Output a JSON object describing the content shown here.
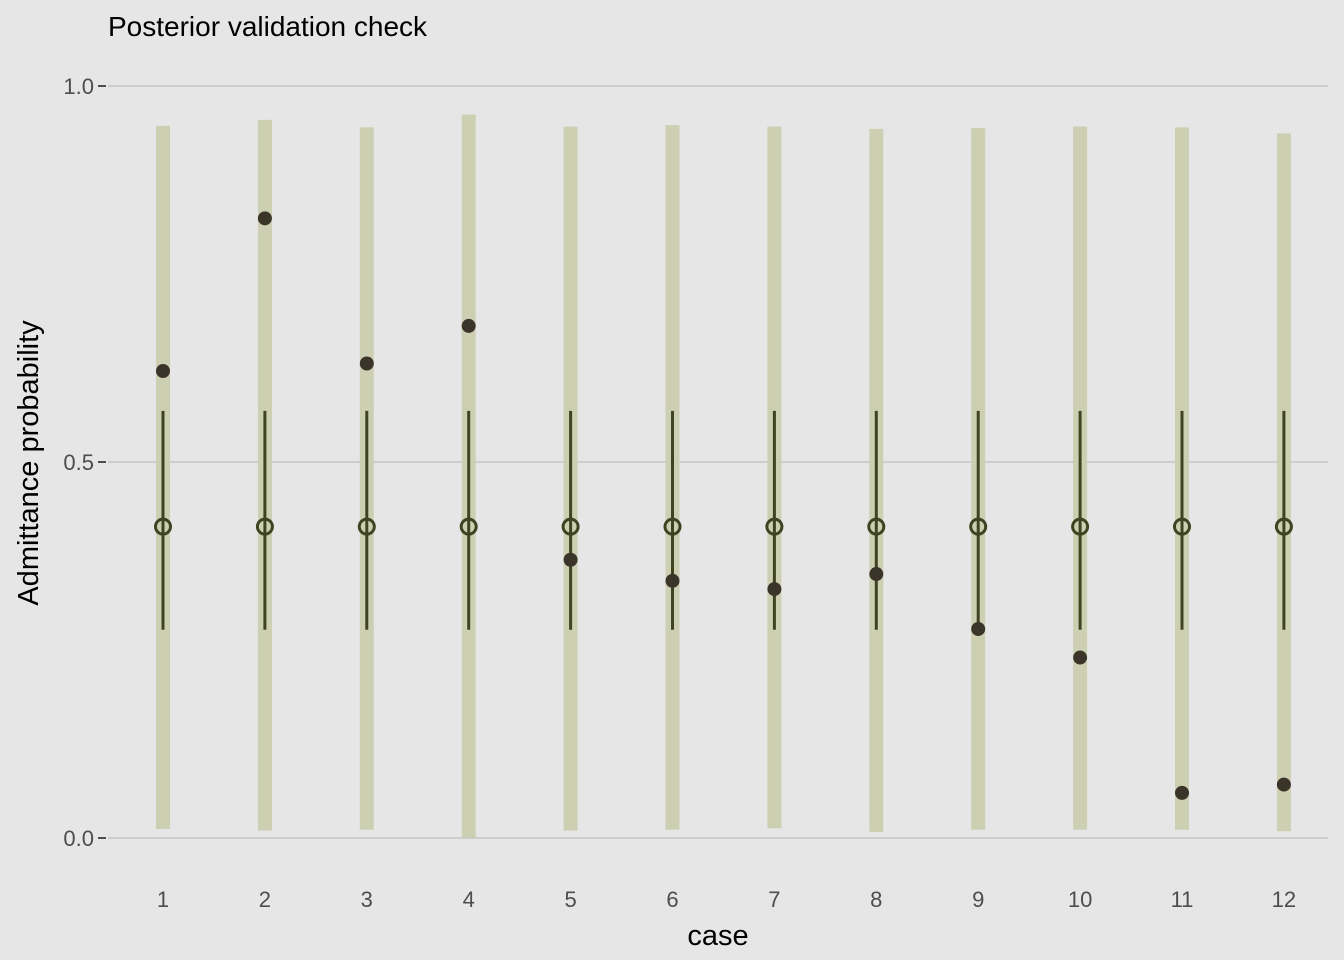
{
  "chart_data": {
    "type": "scatter",
    "title": "Posterior validation check",
    "xlabel": "case",
    "ylabel": "Admittance probability",
    "ylim": [
      0,
      1
    ],
    "yticks": [
      "0.0",
      "0.5",
      "1.0"
    ],
    "categories": [
      "1",
      "2",
      "3",
      "4",
      "5",
      "6",
      "7",
      "8",
      "9",
      "10",
      "11",
      "12"
    ],
    "grid": "horizontal-major",
    "legend": "none",
    "series": [
      {
        "marker": "interval-bar",
        "low": [
          0.012,
          0.01,
          0.011,
          0.0,
          0.01,
          0.011,
          0.013,
          0.008,
          0.011,
          0.011,
          0.011,
          0.009
        ],
        "high": [
          0.947,
          0.955,
          0.945,
          0.962,
          0.946,
          0.948,
          0.946,
          0.943,
          0.944,
          0.946,
          0.945,
          0.937
        ]
      },
      {
        "marker": "interval-line",
        "low": [
          0.277,
          0.277,
          0.277,
          0.277,
          0.277,
          0.277,
          0.277,
          0.277,
          0.277,
          0.277,
          0.277,
          0.277
        ],
        "high": [
          0.568,
          0.568,
          0.568,
          0.568,
          0.568,
          0.568,
          0.568,
          0.568,
          0.568,
          0.568,
          0.568,
          0.568
        ]
      },
      {
        "marker": "open-circle",
        "values": [
          0.414,
          0.414,
          0.414,
          0.414,
          0.414,
          0.414,
          0.414,
          0.414,
          0.414,
          0.414,
          0.414,
          0.414
        ]
      },
      {
        "marker": "filled-circle",
        "values": [
          0.621,
          0.824,
          0.631,
          0.681,
          0.37,
          0.342,
          0.331,
          0.351,
          0.278,
          0.24,
          0.06,
          0.071
        ]
      }
    ],
    "colors": {
      "panel_background": "#E6E6E6",
      "gridline": "#CDCDCD",
      "interval_bar": "#CDCFB2",
      "interval_line": "#3E4322",
      "open_circle": "#3E4322",
      "filled_circle": "#3B3429",
      "tick_text": "#4D4D4D"
    }
  }
}
